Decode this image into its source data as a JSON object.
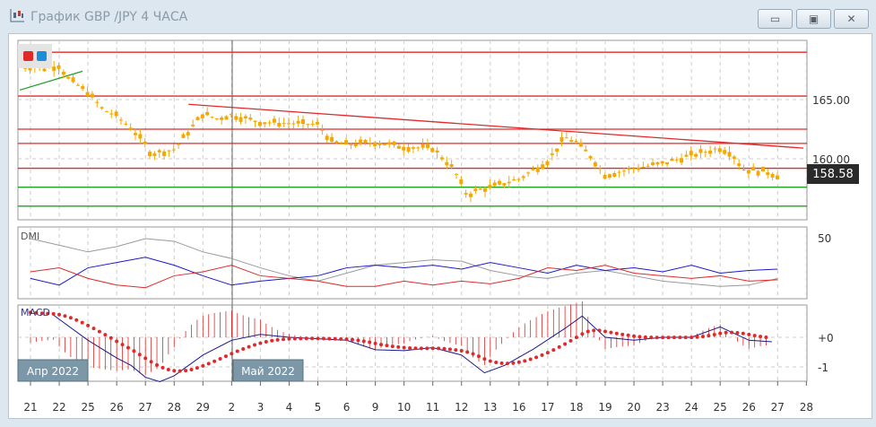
{
  "window": {
    "title": "График GBP /JPY  4 ЧАСА",
    "icon": "candlestick-chart-icon",
    "buttons": [
      {
        "name": "minimize",
        "icon": "minimize-icon"
      },
      {
        "name": "restore",
        "icon": "restore-icon"
      },
      {
        "name": "close",
        "icon": "close-icon"
      }
    ]
  },
  "toggles": {
    "colors": [
      "#e02a2a",
      "#1a8fd8"
    ]
  },
  "price_pane": {
    "axis_labels": [
      "165.00",
      "160.00"
    ],
    "axis_values": [
      165,
      160
    ],
    "last_price": "158.58",
    "red_levels": [
      169.0,
      165.3,
      162.5,
      161.3,
      159.2
    ],
    "green_levels": [
      157.6,
      156.0
    ],
    "trendline_red": [
      [
        6,
        164.6
      ],
      [
        27,
        160.9
      ]
    ],
    "trendline_green": [
      [
        0,
        165.8
      ],
      [
        2,
        167.4
      ]
    ],
    "closes": [
      [
        0,
        167.8
      ],
      [
        0.5,
        167.6
      ],
      [
        1,
        167.9
      ],
      [
        1.3,
        166.8
      ],
      [
        2,
        165.6
      ],
      [
        2.5,
        164.2
      ],
      [
        3,
        163.6
      ],
      [
        3.5,
        162.6
      ],
      [
        4,
        161.2
      ],
      [
        4.2,
        160.4
      ],
      [
        5,
        160.8
      ],
      [
        5.5,
        162.3
      ],
      [
        6,
        163.8
      ],
      [
        6.5,
        163.4
      ],
      [
        7,
        163.7
      ],
      [
        7.5,
        163.4
      ],
      [
        8,
        163.1
      ],
      [
        9,
        163.0
      ],
      [
        10,
        162.9
      ],
      [
        10.5,
        161.4
      ],
      [
        11,
        161.2
      ],
      [
        12,
        161.4
      ],
      [
        13,
        161.0
      ],
      [
        14,
        160.9
      ],
      [
        14.7,
        159.2
      ],
      [
        15.2,
        156.9
      ],
      [
        15.5,
        157.3
      ],
      [
        16,
        157.6
      ],
      [
        17,
        158.3
      ],
      [
        18,
        159.8
      ],
      [
        18.6,
        161.8
      ],
      [
        19,
        161.4
      ],
      [
        19.5,
        160.2
      ],
      [
        20,
        158.6
      ],
      [
        21,
        159.2
      ],
      [
        22,
        159.6
      ],
      [
        23,
        160.3
      ],
      [
        24,
        160.9
      ],
      [
        24.4,
        160.5
      ],
      [
        24.8,
        159.1
      ],
      [
        25.6,
        158.9
      ],
      [
        26,
        158.58
      ]
    ],
    "candle_color": "#f5a800",
    "level_red": "#e02a2a",
    "level_green": "#20a020"
  },
  "dmi": {
    "label": "DMI",
    "axis_label": "50",
    "adx": [
      [
        0,
        50
      ],
      [
        1,
        45
      ],
      [
        2,
        40
      ],
      [
        3,
        44
      ],
      [
        4,
        50
      ],
      [
        5,
        48
      ],
      [
        6,
        40
      ],
      [
        7,
        35
      ],
      [
        8,
        28
      ],
      [
        9,
        22
      ],
      [
        10,
        18
      ],
      [
        11,
        24
      ],
      [
        12,
        30
      ],
      [
        13,
        32
      ],
      [
        14,
        34
      ],
      [
        15,
        33
      ],
      [
        16,
        26
      ],
      [
        17,
        22
      ],
      [
        18,
        20
      ],
      [
        19,
        24
      ],
      [
        20,
        26
      ],
      [
        21,
        22
      ],
      [
        22,
        18
      ],
      [
        23,
        16
      ],
      [
        24,
        14
      ],
      [
        25,
        15
      ],
      [
        26,
        20
      ]
    ],
    "plus_di": [
      [
        0,
        20
      ],
      [
        1,
        15
      ],
      [
        2,
        28
      ],
      [
        3,
        32
      ],
      [
        4,
        36
      ],
      [
        5,
        30
      ],
      [
        6,
        22
      ],
      [
        7,
        15
      ],
      [
        8,
        18
      ],
      [
        9,
        20
      ],
      [
        10,
        22
      ],
      [
        11,
        28
      ],
      [
        12,
        30
      ],
      [
        13,
        28
      ],
      [
        14,
        30
      ],
      [
        15,
        27
      ],
      [
        16,
        32
      ],
      [
        17,
        28
      ],
      [
        18,
        24
      ],
      [
        19,
        30
      ],
      [
        20,
        26
      ],
      [
        21,
        28
      ],
      [
        22,
        25
      ],
      [
        23,
        30
      ],
      [
        24,
        24
      ],
      [
        25,
        26
      ],
      [
        26,
        27
      ]
    ],
    "minus_di": [
      [
        0,
        25
      ],
      [
        1,
        28
      ],
      [
        2,
        20
      ],
      [
        3,
        15
      ],
      [
        4,
        13
      ],
      [
        5,
        22
      ],
      [
        6,
        25
      ],
      [
        7,
        30
      ],
      [
        8,
        22
      ],
      [
        9,
        20
      ],
      [
        10,
        18
      ],
      [
        11,
        14
      ],
      [
        12,
        14
      ],
      [
        13,
        18
      ],
      [
        14,
        15
      ],
      [
        15,
        18
      ],
      [
        16,
        16
      ],
      [
        17,
        20
      ],
      [
        18,
        28
      ],
      [
        19,
        26
      ],
      [
        20,
        30
      ],
      [
        21,
        24
      ],
      [
        22,
        22
      ],
      [
        23,
        20
      ],
      [
        24,
        22
      ],
      [
        25,
        18
      ],
      [
        26,
        19
      ]
    ]
  },
  "macd": {
    "label": "MACD",
    "axis_labels": [
      "+0",
      "-1"
    ],
    "axis_values": [
      0,
      -1
    ],
    "macd_line": [
      [
        0.8,
        0.75
      ],
      [
        2,
        -0.1
      ],
      [
        3,
        -0.7
      ],
      [
        3.5,
        -0.95
      ],
      [
        4,
        -1.35
      ],
      [
        4.5,
        -1.5
      ],
      [
        5,
        -1.3
      ],
      [
        6,
        -0.6
      ],
      [
        7,
        -0.1
      ],
      [
        8,
        0.1
      ],
      [
        9,
        0.0
      ],
      [
        10,
        -0.05
      ],
      [
        11,
        -0.1
      ],
      [
        12,
        -0.42
      ],
      [
        13,
        -0.45
      ],
      [
        14,
        -0.35
      ],
      [
        15,
        -0.6
      ],
      [
        15.8,
        -1.2
      ],
      [
        16.5,
        -0.95
      ],
      [
        17.5,
        -0.4
      ],
      [
        18.6,
        0.3
      ],
      [
        19.2,
        0.72
      ],
      [
        20,
        0.0
      ],
      [
        21,
        -0.1
      ],
      [
        22,
        0.0
      ],
      [
        23,
        0.0
      ],
      [
        24,
        0.35
      ],
      [
        25,
        -0.1
      ],
      [
        25.8,
        -0.15
      ]
    ],
    "signal_color": "#e02a2a",
    "line_color": "#1a1a8a"
  },
  "period_labels": [
    "Апр 2022",
    "Май 2022"
  ],
  "x_axis": {
    "labels": [
      "21",
      "22",
      "25",
      "26",
      "27",
      "28",
      "29",
      "2",
      "3",
      "4",
      "5",
      "6",
      "9",
      "10",
      "11",
      "12",
      "13",
      "16",
      "17",
      "18",
      "19",
      "20",
      "23",
      "24",
      "25",
      "26",
      "27",
      "28"
    ]
  }
}
